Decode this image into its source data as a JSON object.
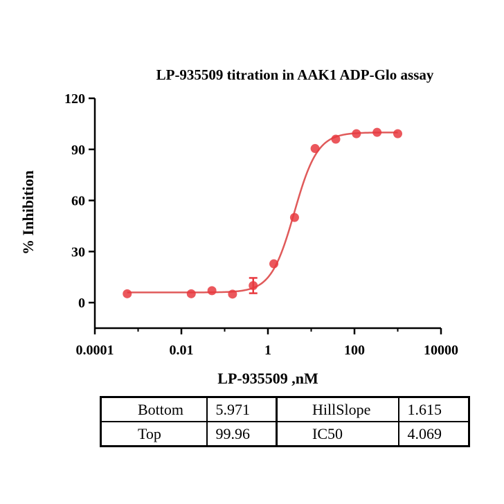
{
  "chart_data": {
    "type": "scatter",
    "title": "LP-935509 titration in AAK1 ADP-Glo assay",
    "xlabel": "LP-935509 ,nM",
    "ylabel": "% Inhibition",
    "xscale": "log",
    "xlim": [
      0.0001,
      10000
    ],
    "ylim": [
      -15,
      120
    ],
    "x_ticks": [
      0.0001,
      0.01,
      1,
      100,
      10000
    ],
    "x_tick_labels": [
      "0.0001",
      "0.01",
      "1",
      "100",
      "10000"
    ],
    "y_ticks": [
      0,
      30,
      60,
      90,
      120
    ],
    "y_tick_labels": [
      "0",
      "30",
      "60",
      "90",
      "120"
    ],
    "grid": false,
    "legend": "none",
    "color": "#e8393f",
    "curve_color": "#e05a5a",
    "series": [
      {
        "points": [
          {
            "x": 0.00056,
            "y": 5.2
          },
          {
            "x": 0.0169,
            "y": 5.2
          },
          {
            "x": 0.0508,
            "y": 7.0
          },
          {
            "x": 0.152,
            "y": 5.0
          },
          {
            "x": 0.457,
            "y": 10.0,
            "err": 4.5
          },
          {
            "x": 1.37,
            "y": 22.8
          },
          {
            "x": 4.12,
            "y": 50.0
          },
          {
            "x": 12.3,
            "y": 90.5
          },
          {
            "x": 37.0,
            "y": 96.0
          },
          {
            "x": 111,
            "y": 99.2
          },
          {
            "x": 333,
            "y": 100.0
          },
          {
            "x": 1000,
            "y": 99.2
          }
        ]
      }
    ],
    "fit": {
      "model": "4PL",
      "bottom": 5.971,
      "top": 99.96,
      "hillslope": 1.615,
      "ic50": 4.069
    }
  },
  "table": {
    "bottom_label": "Bottom",
    "bottom_value": "5.971",
    "hillslope_label": "HillSlope",
    "hillslope_value": "1.615",
    "top_label": "Top",
    "top_value": "99.96",
    "ic50_label": "IC50",
    "ic50_value": "4.069"
  }
}
